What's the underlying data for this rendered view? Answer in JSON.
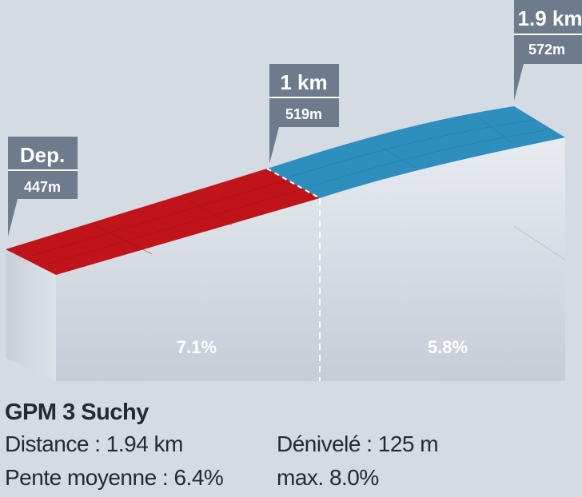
{
  "profile": {
    "markers": [
      {
        "label": "Dep.",
        "altitude": "447m"
      },
      {
        "label": "1 km",
        "altitude": "519m"
      },
      {
        "label": "1.9 km",
        "altitude": "572m"
      }
    ],
    "segments": [
      {
        "gradient": "7.1%",
        "color": "#c0141a"
      },
      {
        "gradient": "5.8%",
        "color": "#2e8fbe"
      }
    ],
    "colors": {
      "background": "#d5dbe3",
      "label_box": "#6d7b8c",
      "side_wall": "#cfd6df",
      "front_wall_top": "#e7ebf0",
      "front_wall_bottom": "#c7ced8"
    }
  },
  "info": {
    "title": "GPM 3 Suchy",
    "distance": "Distance : 1.94 km",
    "elevation_gain": "Dénivelé : 125 m",
    "avg_gradient": "Pente moyenne : 6.4%",
    "max_gradient": "max. 8.0%"
  }
}
